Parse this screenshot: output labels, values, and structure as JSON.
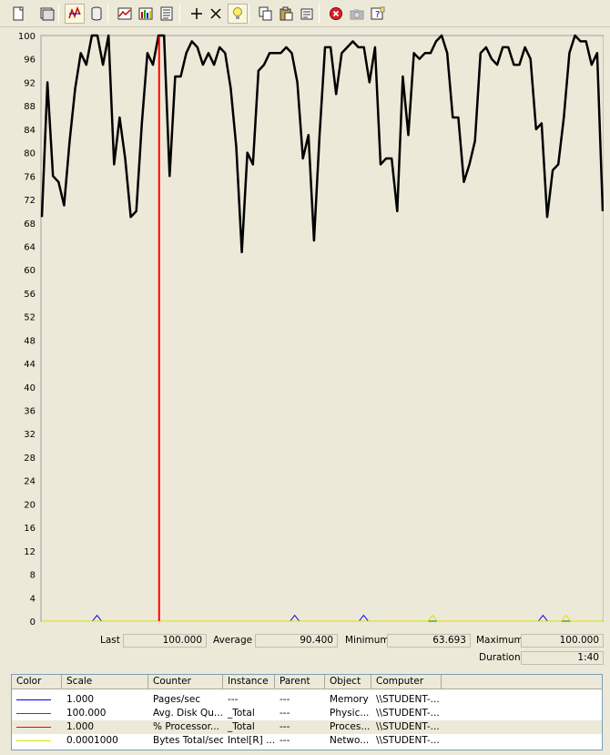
{
  "toolbar": {
    "buttons": [
      {
        "name": "new-counter-set-button",
        "icon": "new-document-icon"
      },
      {
        "name": "clear-display-button",
        "icon": "clear-display-icon"
      },
      {
        "name": "view-current-activity-button",
        "icon": "current-activity-icon",
        "active": true
      },
      {
        "name": "view-log-data-button",
        "icon": "database-icon"
      },
      {
        "name": "view-graph-button",
        "icon": "graph-icon"
      },
      {
        "name": "view-histogram-button",
        "icon": "histogram-icon"
      },
      {
        "name": "view-report-button",
        "icon": "report-icon"
      },
      {
        "name": "add-counter-button",
        "icon": "plus-icon"
      },
      {
        "name": "delete-counter-button",
        "icon": "x-icon"
      },
      {
        "name": "highlight-button",
        "icon": "lightbulb-icon",
        "active": true
      },
      {
        "name": "copy-properties-button",
        "icon": "copy-icon"
      },
      {
        "name": "paste-counter-list-button",
        "icon": "paste-icon"
      },
      {
        "name": "properties-button",
        "icon": "properties-icon"
      },
      {
        "name": "freeze-display-button",
        "icon": "stop-icon"
      },
      {
        "name": "update-data-button",
        "icon": "camera-icon",
        "disabled": true
      },
      {
        "name": "help-button",
        "icon": "help-icon"
      }
    ]
  },
  "chart_data": {
    "type": "line",
    "ylim": [
      0,
      100
    ],
    "yticks": [
      "100",
      "96",
      "92",
      "88",
      "84",
      "80",
      "76",
      "72",
      "68",
      "64",
      "60",
      "56",
      "52",
      "48",
      "44",
      "40",
      "36",
      "32",
      "28",
      "24",
      "20",
      "16",
      "12",
      "8",
      "4",
      "0"
    ],
    "grid": false,
    "time_bar_fraction": 0.21,
    "series": [
      {
        "color": "#000000",
        "width": 2.5,
        "values": [
          69,
          92,
          76,
          75,
          71,
          82,
          91,
          97,
          95,
          100,
          100,
          95,
          100,
          78,
          86,
          79,
          69,
          70,
          85,
          97,
          95,
          100,
          100,
          76,
          93,
          93,
          97,
          99,
          98,
          95,
          97,
          95,
          98,
          97,
          91,
          81,
          63,
          80,
          78,
          94,
          95,
          97,
          97,
          97,
          98,
          97,
          92,
          79,
          83,
          65,
          83,
          98,
          98,
          90,
          97,
          98,
          99,
          98,
          98,
          92,
          98,
          78,
          79,
          79,
          70,
          93,
          83,
          97,
          96,
          97,
          97,
          99,
          100,
          97,
          86,
          86,
          75,
          78,
          82,
          97,
          98,
          96,
          95,
          98,
          98,
          95,
          95,
          98,
          96,
          84,
          85,
          69,
          77,
          78,
          86,
          97,
          100,
          99,
          99,
          95,
          97,
          70
        ],
        "x_start_index": 0
      },
      {
        "color": "#0000ff",
        "width": 1,
        "values": [
          0,
          0,
          0,
          0,
          0,
          0,
          0,
          0,
          0,
          0,
          0,
          0,
          1,
          0,
          0,
          0,
          0,
          0,
          0,
          0,
          0,
          0,
          0,
          0,
          0,
          0,
          0,
          0,
          0,
          0,
          0,
          0,
          0,
          0,
          0,
          0,
          0,
          0,
          0,
          0,
          0,
          0,
          0,
          0,
          0,
          0,
          0,
          0,
          0,
          0,
          0,
          0,
          0,
          0,
          0,
          1,
          0,
          0,
          0,
          0,
          0,
          0,
          0,
          0,
          0,
          0,
          0,
          0,
          0,
          0,
          1,
          0,
          0,
          0,
          0,
          0,
          0,
          0,
          0,
          0,
          0,
          0,
          0,
          0,
          0,
          0,
          0,
          0,
          0,
          0,
          0,
          0,
          0,
          0,
          0,
          0,
          0,
          0,
          0,
          0,
          0,
          0,
          0,
          0,
          0,
          0,
          0,
          0,
          0,
          1,
          0,
          0,
          0,
          0,
          0,
          0,
          0,
          0,
          0,
          0,
          0,
          0,
          0
        ]
      },
      {
        "color": "#008000",
        "width": 1,
        "values": [
          0,
          0,
          0,
          0,
          0,
          0,
          0,
          0,
          0,
          0,
          0,
          0,
          0,
          0,
          0,
          0,
          0,
          0,
          0,
          0,
          0,
          0,
          0,
          0,
          0,
          0,
          0,
          0,
          0,
          0,
          0,
          0,
          0,
          0,
          0,
          0,
          0,
          0,
          0,
          0,
          0,
          0,
          0,
          0,
          0,
          0,
          0,
          0,
          0,
          0,
          0,
          0,
          0,
          0,
          0,
          0,
          0,
          0,
          0,
          0,
          0,
          0,
          0,
          0,
          0,
          0,
          0,
          0,
          0,
          0,
          0,
          0,
          0,
          0,
          0,
          0,
          0,
          0,
          0,
          0,
          0,
          0,
          0,
          0,
          0,
          0,
          0,
          0,
          0,
          0,
          0,
          0,
          0,
          0,
          0,
          0,
          0,
          0,
          0,
          0,
          0,
          0,
          0,
          0,
          0,
          0,
          0,
          0,
          0,
          0,
          0,
          0,
          0,
          0,
          0,
          0,
          0,
          0,
          0,
          0,
          0,
          0,
          0
        ]
      },
      {
        "color": "#e0e000",
        "width": 1,
        "values": [
          0,
          0,
          0,
          0,
          0,
          0,
          0,
          0,
          0,
          0,
          0,
          0,
          0,
          0,
          0,
          0,
          0,
          0,
          0,
          0,
          0,
          0,
          0,
          0,
          0,
          0,
          0,
          0,
          0,
          0,
          0,
          0,
          0,
          0,
          0,
          0,
          0,
          0,
          0,
          0,
          0,
          0,
          0,
          0,
          0,
          0,
          0,
          0,
          0,
          0,
          0,
          0,
          0,
          0,
          0,
          0,
          0,
          0,
          0,
          0,
          0,
          0,
          0,
          0,
          0,
          0,
          0,
          0,
          0,
          0,
          0,
          0,
          0,
          0,
          0,
          0,
          0,
          0,
          0,
          0,
          0,
          0,
          0,
          0,
          0,
          1,
          0,
          0,
          0,
          0,
          0,
          0,
          0,
          0,
          0,
          0,
          0,
          0,
          0,
          0,
          0,
          0,
          0,
          0,
          0,
          0,
          0,
          0,
          0,
          0,
          0,
          0,
          0,
          0,
          1,
          0,
          0,
          0,
          0,
          0,
          0,
          0,
          0
        ]
      }
    ],
    "colors": {
      "time_bar": "#ff0000",
      "plot_bg": "#ece9d8"
    }
  },
  "stats": {
    "last_label": "Last",
    "last_value": "100.000",
    "average_label": "Average",
    "average_value": "90.400",
    "minimum_label": "Minimum",
    "minimum_value": "63.693",
    "maximum_label": "Maximum",
    "maximum_value": "100.000",
    "duration_label": "Duration",
    "duration_value": "1:40"
  },
  "legend": {
    "headers": [
      "Color",
      "Scale",
      "Counter",
      "Instance",
      "Parent",
      "Object",
      "Computer"
    ],
    "rows": [
      {
        "color": "#0000ff",
        "scale": "1.000",
        "counter": "Pages/sec",
        "instance": "---",
        "parent": "---",
        "object": "Memory",
        "computer": "\\\\STUDENT-...",
        "selected": false
      },
      {
        "color": "#008000",
        "scale": "100.000",
        "counter": "Avg. Disk Qu...",
        "instance": "_Total",
        "parent": "---",
        "object": "Physic...",
        "computer": "\\\\STUDENT-...",
        "selected": false
      },
      {
        "color": "#ff0000",
        "scale": "1.000",
        "counter": "% Processor...",
        "instance": "_Total",
        "parent": "---",
        "object": "Proces...",
        "computer": "\\\\STUDENT-...",
        "selected": true
      },
      {
        "color": "#e0e000",
        "scale": "0.0001000",
        "counter": "Bytes Total/sec",
        "instance": "Intel[R] ...",
        "parent": "---",
        "object": "Netwo...",
        "computer": "\\\\STUDENT-...",
        "selected": false
      }
    ]
  }
}
